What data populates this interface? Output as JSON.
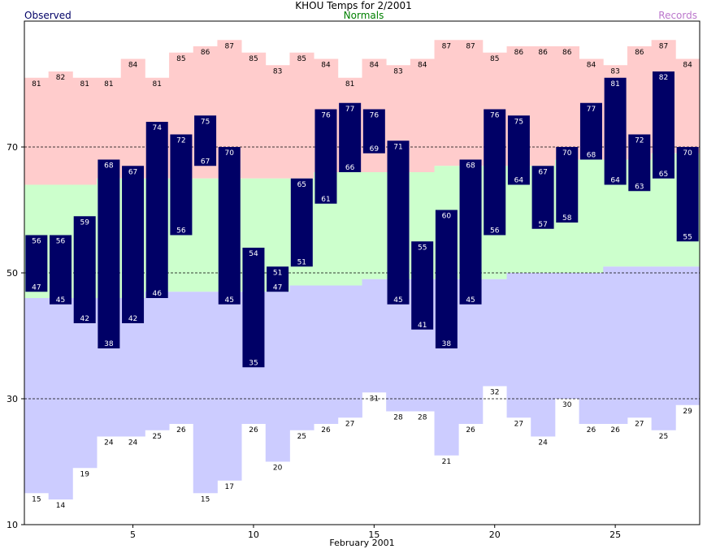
{
  "chart_data": {
    "type": "bar",
    "title": "KHOU Temps for 2/2001",
    "xlabel": "February 2001",
    "ylabel": "",
    "legend": {
      "observed": "Observed",
      "normals": "Normals",
      "records": "Records"
    },
    "legend_placement": "top",
    "ylim": [
      10,
      90
    ],
    "yticks": [
      10,
      30,
      50,
      70
    ],
    "xlim": [
      0.5,
      28.5
    ],
    "xticks": [
      5,
      10,
      15,
      20,
      25
    ],
    "gridlines_y": [
      30,
      50,
      70
    ],
    "days": [
      1,
      2,
      3,
      4,
      5,
      6,
      7,
      8,
      9,
      10,
      11,
      12,
      13,
      14,
      15,
      16,
      17,
      18,
      19,
      20,
      21,
      22,
      23,
      24,
      25,
      26,
      27,
      28
    ],
    "record_high": [
      81,
      82,
      81,
      81,
      84,
      81,
      85,
      86,
      87,
      85,
      83,
      85,
      84,
      81,
      84,
      83,
      84,
      87,
      87,
      85,
      86,
      86,
      86,
      84,
      83,
      86,
      87,
      84
    ],
    "record_low": [
      15,
      14,
      19,
      24,
      24,
      25,
      26,
      15,
      17,
      26,
      20,
      25,
      26,
      27,
      31,
      28,
      28,
      21,
      26,
      32,
      27,
      24,
      30,
      26,
      26,
      27,
      25,
      29
    ],
    "normal_high": [
      64,
      64,
      64,
      65,
      65,
      65,
      65,
      65,
      65,
      65,
      65,
      65,
      66,
      66,
      66,
      66,
      66,
      67,
      67,
      67,
      67,
      67,
      68,
      68,
      68,
      68,
      69,
      69
    ],
    "normal_low": [
      46,
      46,
      46,
      46,
      46,
      47,
      47,
      47,
      47,
      47,
      47,
      48,
      48,
      48,
      49,
      49,
      49,
      49,
      49,
      49,
      50,
      50,
      50,
      50,
      51,
      51,
      51,
      51
    ],
    "observed_high": [
      56,
      56,
      59,
      68,
      67,
      74,
      72,
      75,
      70,
      54,
      51,
      65,
      76,
      77,
      76,
      71,
      55,
      60,
      68,
      76,
      75,
      67,
      70,
      77,
      81,
      72,
      82,
      70
    ],
    "observed_low": [
      47,
      45,
      42,
      38,
      42,
      46,
      56,
      67,
      45,
      35,
      47,
      51,
      61,
      66,
      69,
      45,
      41,
      38,
      45,
      56,
      64,
      57,
      58,
      68,
      64,
      63,
      65,
      55
    ],
    "colors": {
      "record_band": "#ffcccc",
      "normal_band": "#ccffcc",
      "low_band": "#ccccff",
      "observed": "#000066",
      "observed_label": "#ffffff",
      "gridline": "#000000",
      "title": "#000000",
      "observed_legend": "#000066",
      "normals_legend": "#008000",
      "records_legend": "#bb77cc"
    }
  }
}
